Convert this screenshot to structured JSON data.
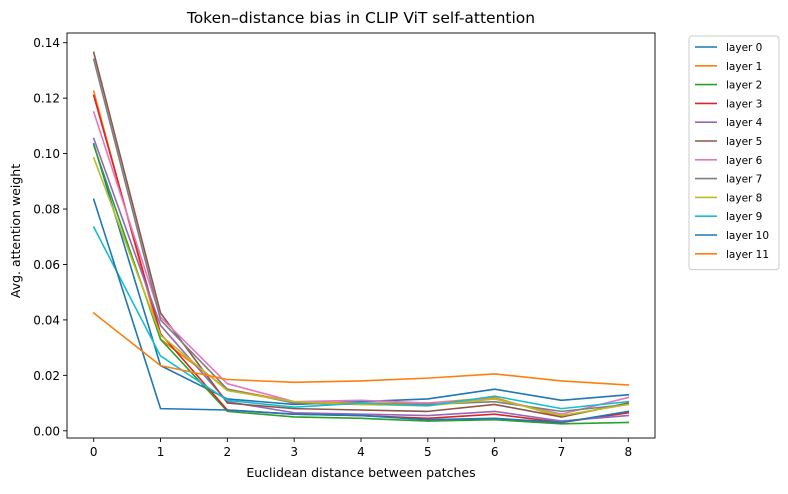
{
  "chart_data": {
    "type": "line",
    "title": "Token–distance bias in CLIP ViT self-attention",
    "xlabel": "Euclidean distance between patches",
    "ylabel": "Avg. attention weight",
    "x": [
      0,
      1,
      2,
      3,
      4,
      5,
      6,
      7,
      8
    ],
    "x_ticks": [
      "0",
      "1",
      "2",
      "3",
      "4",
      "5",
      "6",
      "7",
      "8"
    ],
    "y_ticks": [
      "0.00",
      "0.02",
      "0.04",
      "0.06",
      "0.08",
      "0.10",
      "0.12",
      "0.14"
    ],
    "xlim": [
      -0.4,
      8.4
    ],
    "ylim": [
      -0.0026,
      0.1435
    ],
    "grid": false,
    "legend_position": "outside-right",
    "series": [
      {
        "name": "layer 0",
        "color": "#1f77b4",
        "values": [
          0.1035,
          0.0235,
          0.0115,
          0.0095,
          0.0105,
          0.0115,
          0.015,
          0.011,
          0.013
        ]
      },
      {
        "name": "layer 1",
        "color": "#ff7f0e",
        "values": [
          0.1225,
          0.033,
          0.015,
          0.0105,
          0.01,
          0.01,
          0.012,
          0.005,
          0.01
        ]
      },
      {
        "name": "layer 2",
        "color": "#2ca02c",
        "values": [
          0.103,
          0.033,
          0.007,
          0.005,
          0.0045,
          0.0035,
          0.004,
          0.0025,
          0.003
        ]
      },
      {
        "name": "layer 3",
        "color": "#d62728",
        "values": [
          0.121,
          0.035,
          0.0075,
          0.006,
          0.0055,
          0.0045,
          0.006,
          0.003,
          0.0065
        ]
      },
      {
        "name": "layer 4",
        "color": "#9467bd",
        "values": [
          0.1055,
          0.038,
          0.0105,
          0.0065,
          0.006,
          0.0055,
          0.007,
          0.0035,
          0.0055
        ]
      },
      {
        "name": "layer 5",
        "color": "#8c564b",
        "values": [
          0.1365,
          0.0425,
          0.01,
          0.008,
          0.0075,
          0.007,
          0.0095,
          0.005,
          0.01
        ]
      },
      {
        "name": "layer 6",
        "color": "#e377c2",
        "values": [
          0.115,
          0.041,
          0.017,
          0.0105,
          0.011,
          0.01,
          0.0115,
          0.006,
          0.012
        ]
      },
      {
        "name": "layer 7",
        "color": "#7f7f7f",
        "values": [
          0.134,
          0.04,
          0.015,
          0.01,
          0.0095,
          0.0095,
          0.0105,
          0.007,
          0.0095
        ]
      },
      {
        "name": "layer 8",
        "color": "#bcbd22",
        "values": [
          0.0985,
          0.0345,
          0.0145,
          0.0105,
          0.0095,
          0.009,
          0.0115,
          0.0055,
          0.0095
        ]
      },
      {
        "name": "layer 9",
        "color": "#17becf",
        "values": [
          0.0735,
          0.027,
          0.011,
          0.0085,
          0.01,
          0.009,
          0.0125,
          0.008,
          0.0105
        ]
      },
      {
        "name": "layer 10",
        "color": "#1f77b4",
        "values": [
          0.0835,
          0.008,
          0.0075,
          0.006,
          0.0055,
          0.004,
          0.0045,
          0.003,
          0.007
        ]
      },
      {
        "name": "layer 11",
        "color": "#ff7f0e",
        "values": [
          0.0425,
          0.0235,
          0.0185,
          0.0175,
          0.018,
          0.019,
          0.0205,
          0.018,
          0.0165
        ]
      }
    ]
  }
}
